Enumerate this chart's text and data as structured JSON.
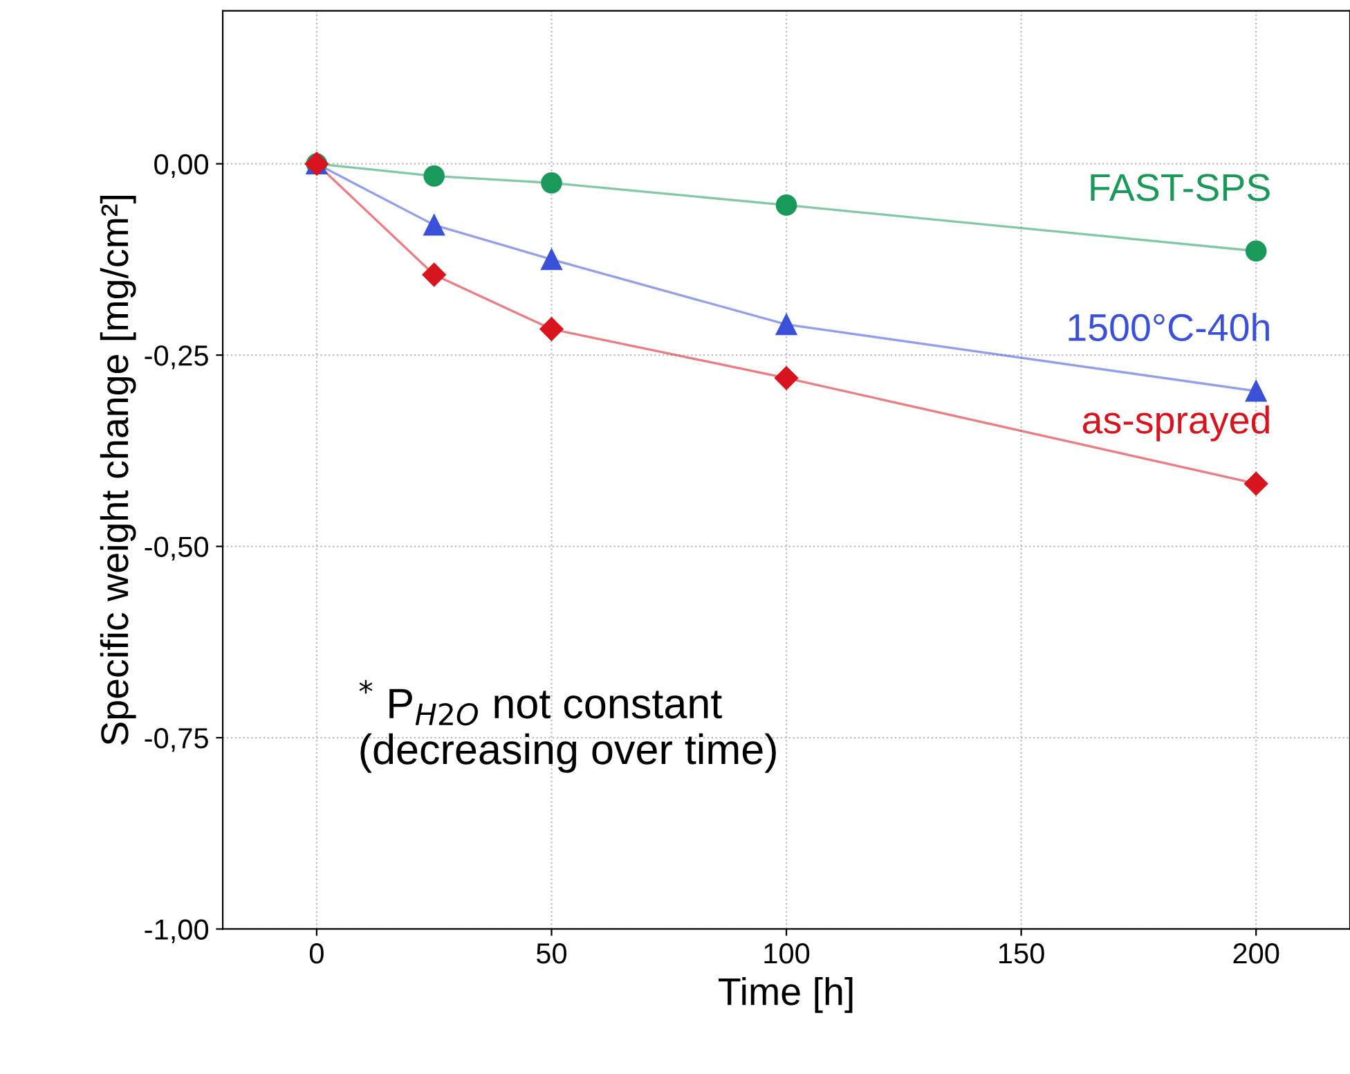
{
  "chart_data": {
    "type": "line",
    "xlabel": "Time [h]",
    "ylabel": "Specific weight change [mg/cm²]",
    "x": [
      0,
      25,
      50,
      100,
      200
    ],
    "series": [
      {
        "name": "FAST-SPS",
        "color": "#1a9a5a",
        "marker": "circle",
        "values": [
          0,
          -0.016,
          -0.025,
          -0.054,
          -0.114
        ]
      },
      {
        "name": "1500°C-40h",
        "color": "#3a50d8",
        "marker": "triangle",
        "values": [
          0,
          -0.08,
          -0.125,
          -0.21,
          -0.297
        ]
      },
      {
        "name": "as-sprayed",
        "color": "#d8141e",
        "marker": "diamond",
        "values": [
          0,
          -0.145,
          -0.216,
          -0.28,
          -0.418
        ]
      }
    ],
    "xlim": [
      -20,
      220
    ],
    "xticks": [
      0,
      50,
      100,
      150,
      200
    ],
    "ylim": [
      -1,
      0.2
    ],
    "yticks": [
      {
        "value": -1,
        "label": "-1,00"
      },
      {
        "value": -0.75,
        "label": "-0,75"
      },
      {
        "value": -0.5,
        "label": "-0,50"
      },
      {
        "value": -0.25,
        "label": "-0,25"
      },
      {
        "value": 0,
        "label": "0,00"
      }
    ],
    "grid": true,
    "legend": false,
    "annotations": [
      "$^{*}$ P$_{H2O}$ not constant\n(decreasing over time)"
    ]
  }
}
